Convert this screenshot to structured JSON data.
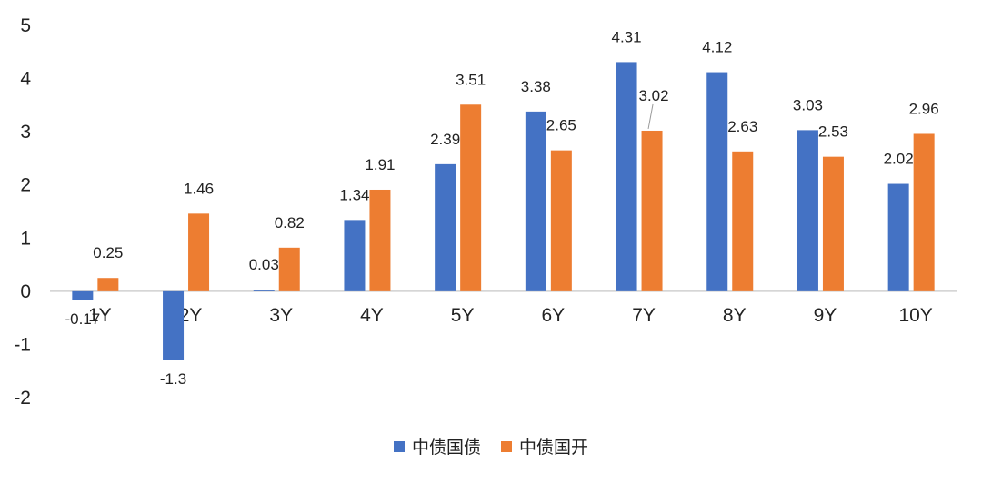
{
  "chart_data": {
    "type": "bar",
    "categories": [
      "1Y",
      "2Y",
      "3Y",
      "4Y",
      "5Y",
      "6Y",
      "7Y",
      "8Y",
      "9Y",
      "10Y"
    ],
    "series": [
      {
        "name": "中债国债",
        "color": "#4472C4",
        "values": [
          -0.17,
          -1.3,
          0.03,
          1.34,
          2.39,
          3.38,
          4.31,
          4.12,
          3.03,
          2.02
        ],
        "labels": [
          "-0.17",
          "-1.3",
          "0.03",
          "1.34",
          "2.39",
          "3.38",
          "4.31",
          "4.12",
          "3.03",
          "2.02"
        ]
      },
      {
        "name": "中债国开",
        "color": "#ED7D31",
        "values": [
          0.25,
          1.46,
          0.82,
          1.91,
          3.51,
          2.65,
          3.02,
          2.63,
          2.53,
          2.96
        ],
        "labels": [
          "0.25",
          "1.46",
          "0.82",
          "1.91",
          "3.51",
          "2.65",
          "3.02",
          "2.63",
          "2.53",
          "2.96"
        ]
      }
    ],
    "ylim": [
      -2,
      5
    ],
    "yticks": [
      "-2",
      "-1",
      "0",
      "1",
      "2",
      "3",
      "4",
      "5"
    ],
    "grid": false,
    "legend": "bottom-center",
    "title": "",
    "xlabel": "",
    "ylabel": ""
  }
}
